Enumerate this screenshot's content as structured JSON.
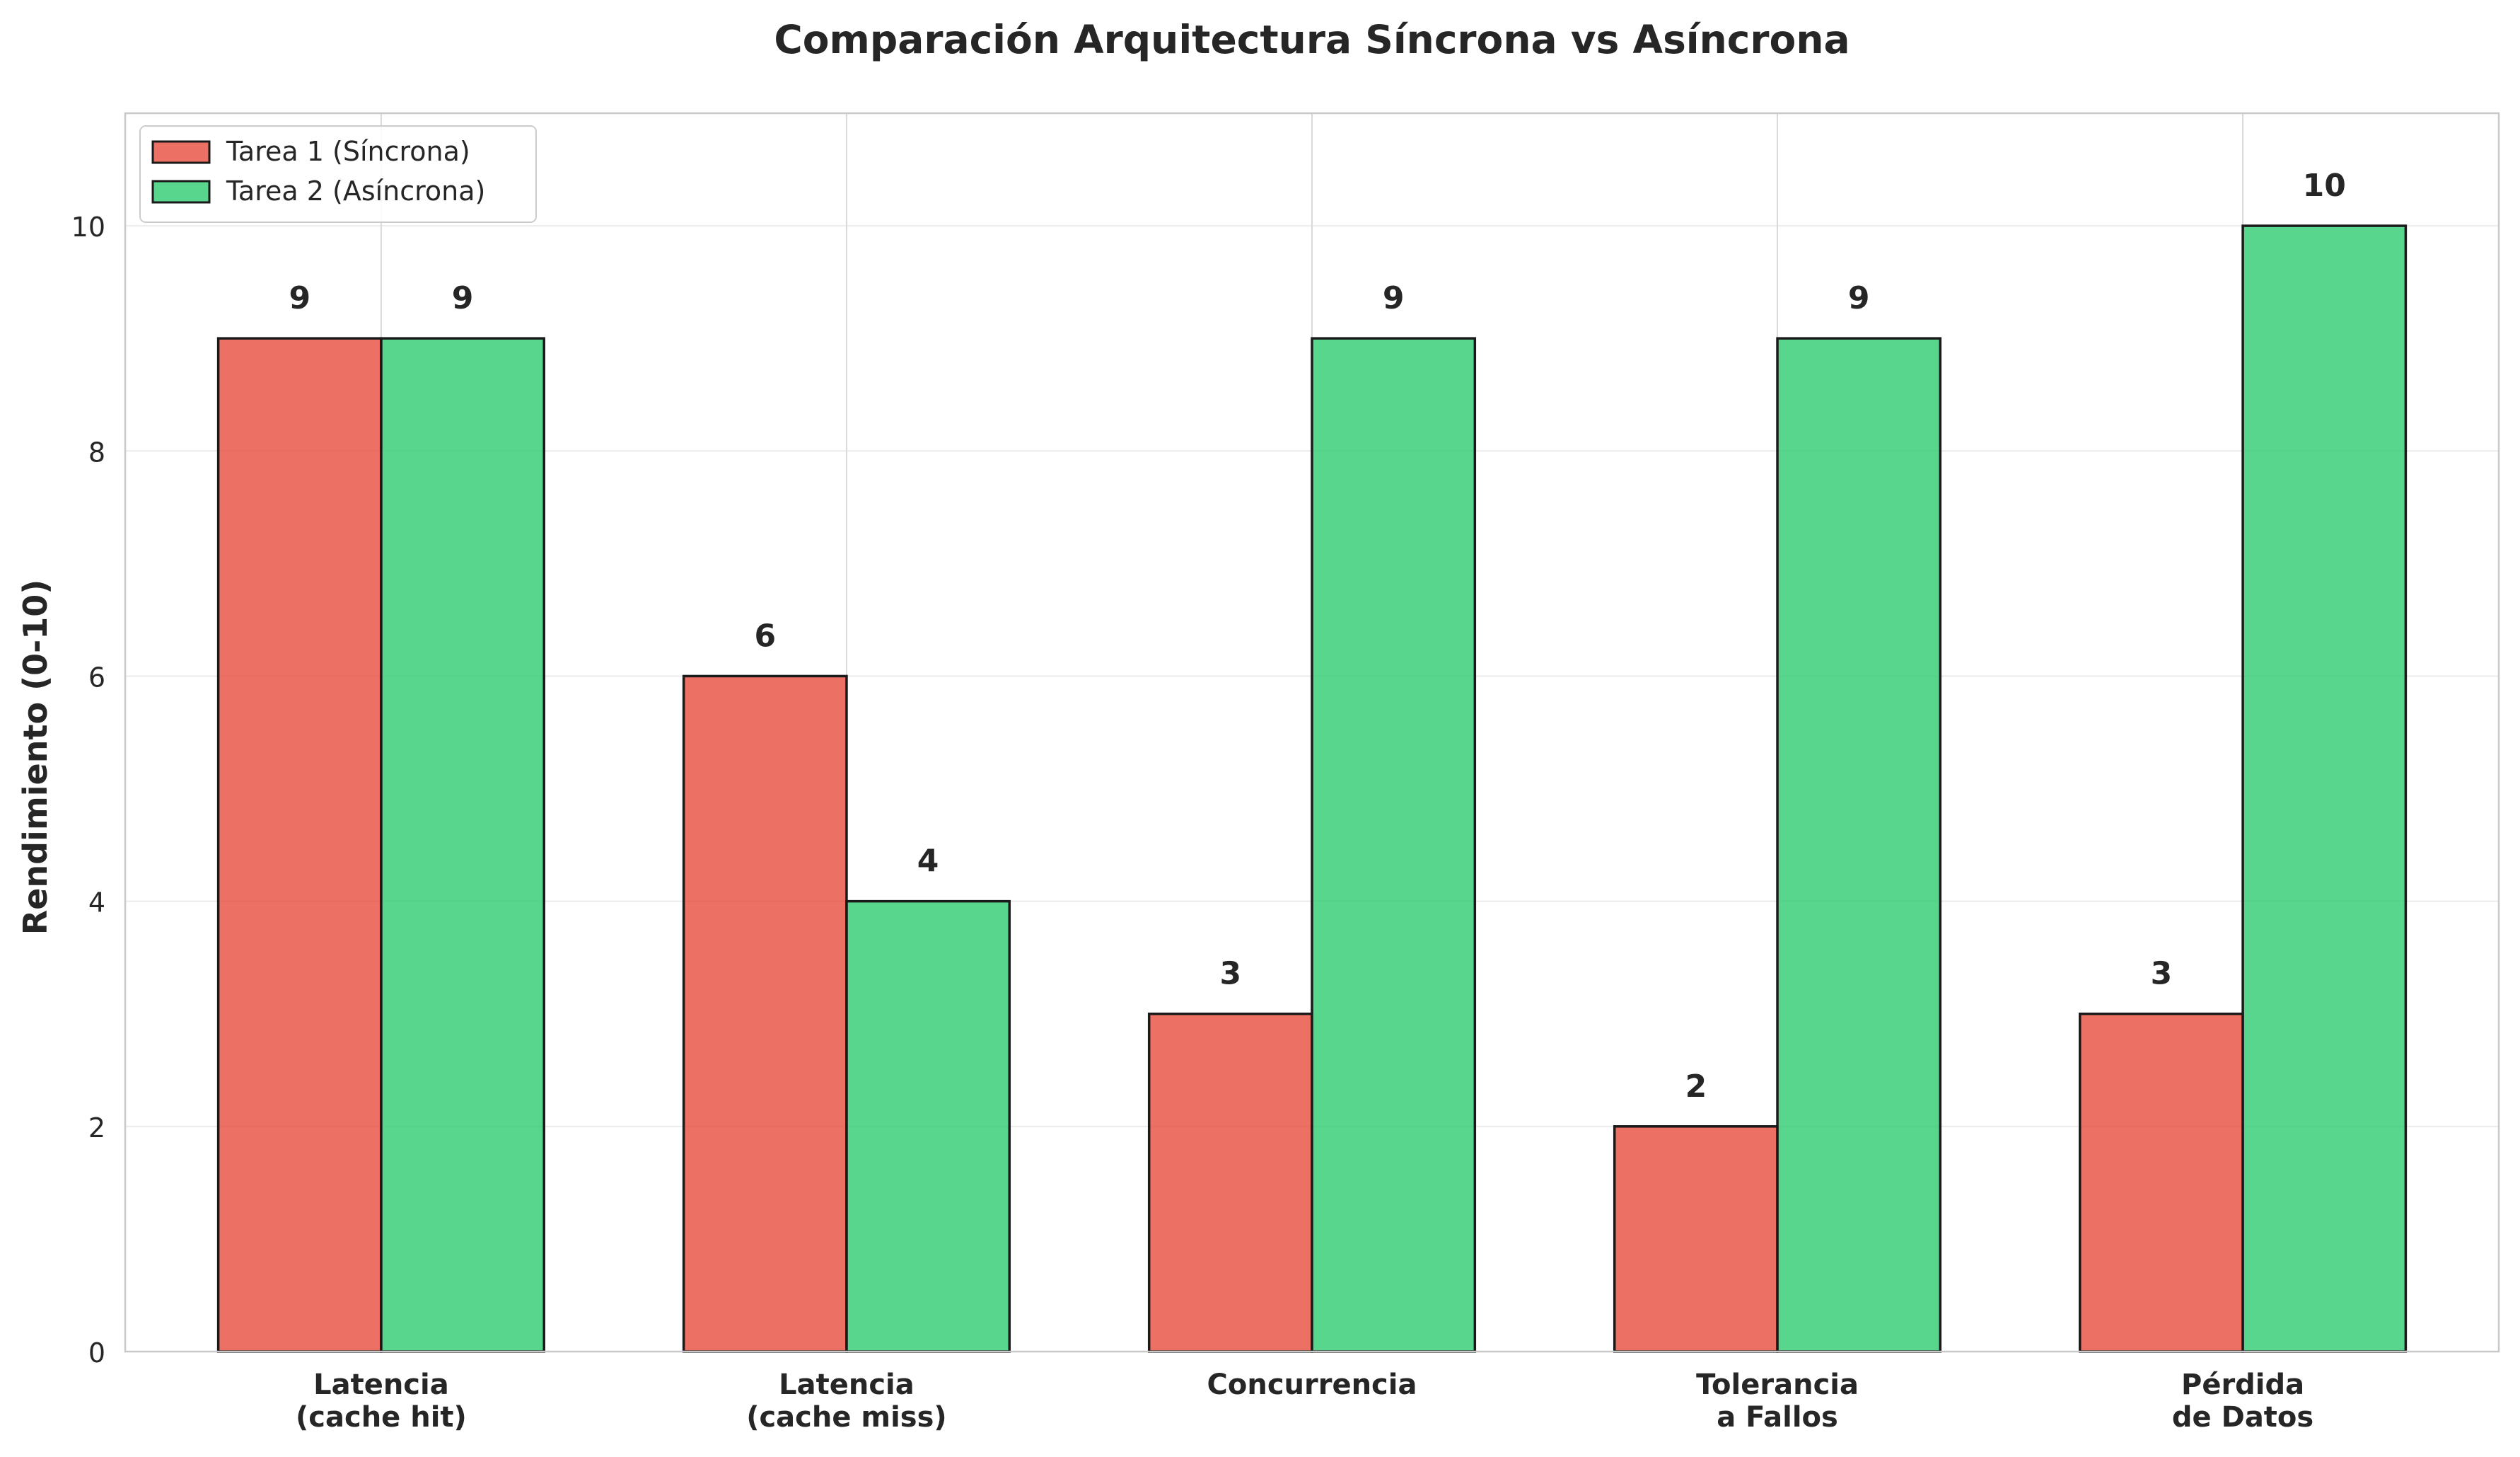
{
  "chart_data": {
    "type": "bar",
    "title": "Comparación Arquitectura Síncrona vs Asíncrona",
    "xlabel": "",
    "ylabel": "Rendimiento (0-10)",
    "ylim": [
      0,
      11
    ],
    "yticks": [
      0,
      2,
      4,
      6,
      8,
      10
    ],
    "grid": true,
    "legend_position": "top-left",
    "categories": [
      [
        "Latencia",
        "(cache hit)"
      ],
      [
        "Latencia",
        "(cache miss)"
      ],
      [
        "Concurrencia"
      ],
      [
        "Tolerancia",
        "a Fallos"
      ],
      [
        "Pérdida",
        "de Datos"
      ]
    ],
    "series": [
      {
        "name": "Tarea 1 (Síncrona)",
        "color": "#e74c3c",
        "values": [
          9,
          6,
          3,
          2,
          3
        ]
      },
      {
        "name": "Tarea 2 (Asíncrona)",
        "color": "#2ecc71",
        "values": [
          9,
          4,
          9,
          9,
          10
        ]
      }
    ]
  }
}
